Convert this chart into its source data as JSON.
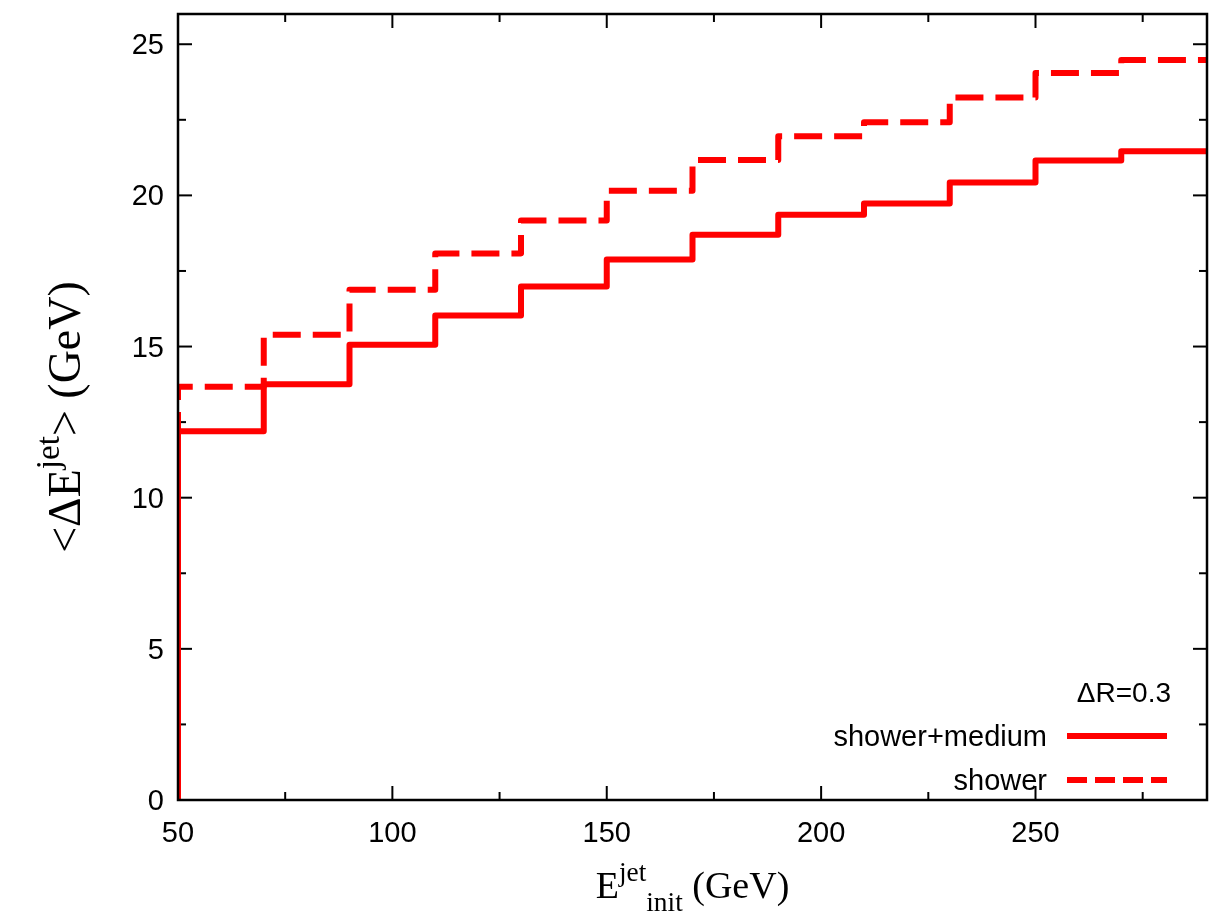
{
  "chart_data": {
    "type": "step",
    "xlabel": "E$^{jet}$$_{init}$ (GeV)",
    "ylabel": "<ΔE$^{jet}$> (GeV)",
    "legend_title": "ΔR=0.3",
    "legend": "bottom right",
    "xlim": [
      50,
      290
    ],
    "ylim": [
      0,
      26
    ],
    "xticks": [
      50,
      {
        "value": 75,
        "label": null
      },
      100,
      {
        "value": 125,
        "label": null
      },
      150,
      {
        "value": 175,
        "label": null
      },
      200,
      {
        "value": 225,
        "label": null
      },
      250,
      {
        "value": 275,
        "label": null
      }
    ],
    "yticks": [
      0,
      {
        "value": 2.5,
        "label": null
      },
      5,
      {
        "value": 7.5,
        "label": null
      },
      10,
      {
        "value": 12.5,
        "label": null
      },
      15,
      {
        "value": 17.5,
        "label": null
      },
      20,
      {
        "value": 22.5,
        "label": null
      },
      25
    ],
    "series": [
      {
        "name": "shower+medium",
        "color": "#ff0000",
        "line_style": "solid",
        "x": [
          50,
          50,
          70,
          90,
          110,
          130,
          150,
          170,
          190,
          210,
          230,
          250,
          270,
          290
        ],
        "values": [
          0,
          12.2,
          13.75,
          15.06,
          16.03,
          16.99,
          17.88,
          18.7,
          19.36,
          19.73,
          20.43,
          21.15,
          21.46,
          21.46
        ]
      },
      {
        "name": "shower",
        "color": "#ff0000",
        "line_style": "dashed",
        "x": [
          50,
          50,
          70,
          90,
          110,
          130,
          150,
          170,
          190,
          210,
          230,
          250,
          270,
          290
        ],
        "values": [
          0,
          13.67,
          15.39,
          16.88,
          18.08,
          19.17,
          20.15,
          21.17,
          21.96,
          22.42,
          23.24,
          24.05,
          24.48,
          24.48
        ]
      }
    ]
  }
}
